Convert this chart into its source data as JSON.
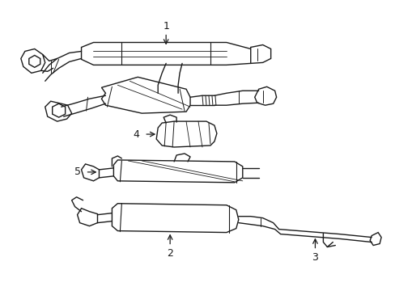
{
  "background_color": "#ffffff",
  "line_color": "#1a1a1a",
  "lw": 1.0,
  "fig_width": 4.89,
  "fig_height": 3.6,
  "dpi": 100
}
